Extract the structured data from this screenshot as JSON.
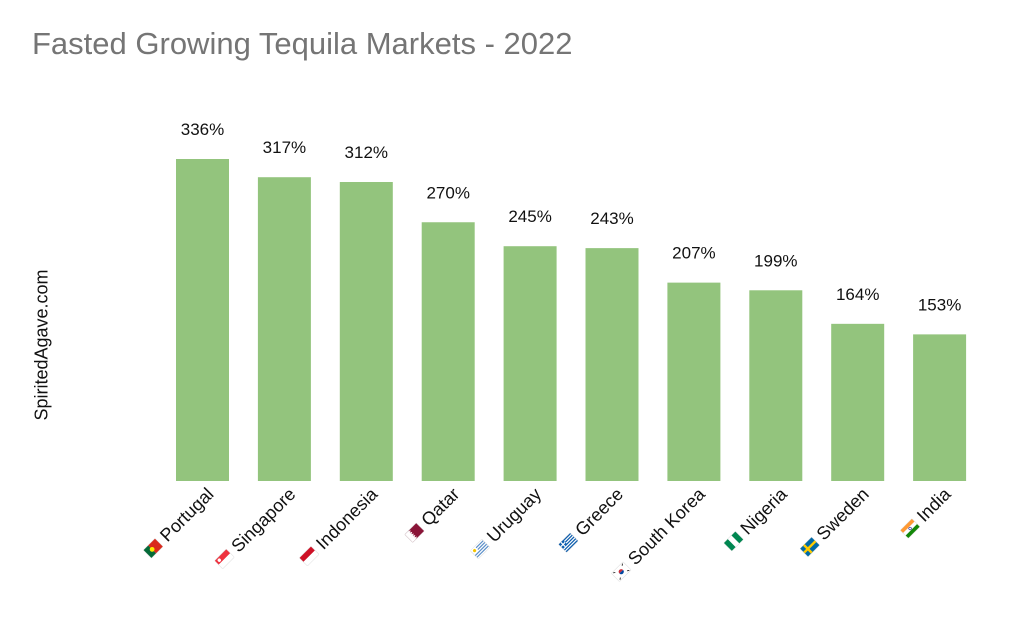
{
  "chart_data": {
    "type": "bar",
    "title": "Fasted Growing Tequila Markets - 2022",
    "ylabel": "SpiritedAgave.com",
    "categories": [
      "Portugal",
      "Singapore",
      "Indonesia",
      "Qatar",
      "Uruguay",
      "Greece",
      "South Korea",
      "Nigeria",
      "Sweden",
      "India"
    ],
    "values": [
      336,
      317,
      312,
      270,
      245,
      243,
      207,
      199,
      164,
      153
    ],
    "value_labels": [
      "336%",
      "317%",
      "312%",
      "270%",
      "245%",
      "243%",
      "207%",
      "199%",
      "164%",
      "153%"
    ],
    "flag_icons": [
      "flag-portugal-icon",
      "flag-singapore-icon",
      "flag-indonesia-icon",
      "flag-qatar-icon",
      "flag-uruguay-icon",
      "flag-greece-icon",
      "flag-south-korea-icon",
      "flag-nigeria-icon",
      "flag-sweden-icon",
      "flag-india-icon"
    ],
    "bar_color": "#93c47d",
    "ylim": [
      0,
      336
    ],
    "grid": false,
    "legend": "none"
  }
}
